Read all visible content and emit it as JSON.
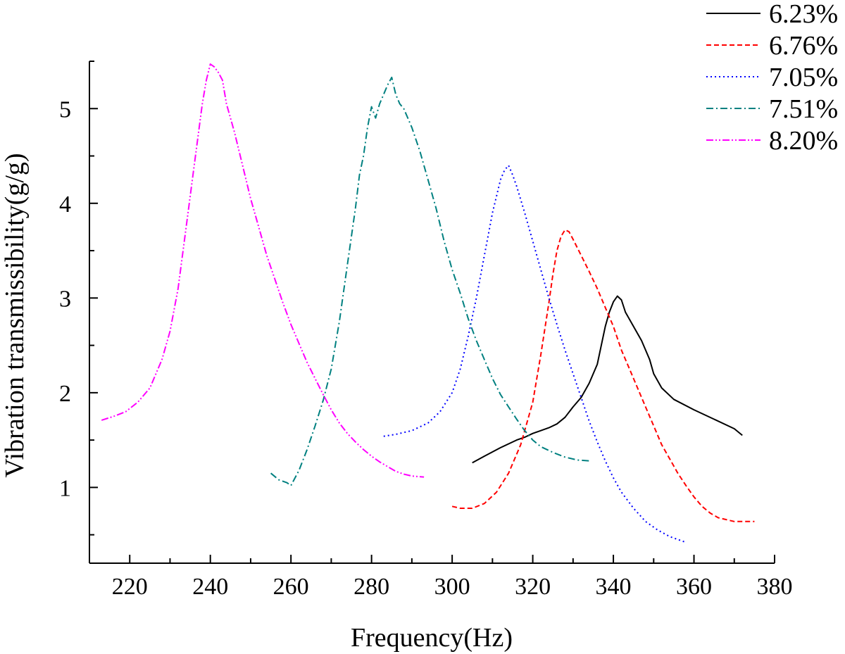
{
  "chart_data": {
    "type": "line",
    "title": "",
    "xlabel": "Frequency(Hz)",
    "ylabel": "Vibration transmissibility(g/g)",
    "xlim": [
      210,
      380
    ],
    "ylim": [
      0.2,
      5.5
    ],
    "xticks": [
      220,
      240,
      260,
      280,
      300,
      320,
      340,
      360,
      380
    ],
    "yticks": [
      1,
      2,
      3,
      4,
      5
    ],
    "xtick_labels": [
      "220",
      "240",
      "260",
      "280",
      "300",
      "320",
      "340",
      "360",
      "380"
    ],
    "ytick_labels": [
      "1",
      "2",
      "3",
      "4",
      "5"
    ],
    "grid": false,
    "legend_position": "top-right",
    "series": [
      {
        "name": "6.23%",
        "color": "#000000",
        "dash": "solid",
        "points": [
          [
            305,
            1.26
          ],
          [
            308,
            1.33
          ],
          [
            312,
            1.42
          ],
          [
            316,
            1.5
          ],
          [
            318,
            1.53
          ],
          [
            320,
            1.57
          ],
          [
            322,
            1.6
          ],
          [
            324,
            1.63
          ],
          [
            326,
            1.67
          ],
          [
            328,
            1.74
          ],
          [
            330,
            1.85
          ],
          [
            332,
            1.95
          ],
          [
            334,
            2.1
          ],
          [
            336,
            2.3
          ],
          [
            337,
            2.5
          ],
          [
            338,
            2.7
          ],
          [
            339,
            2.85
          ],
          [
            340,
            2.96
          ],
          [
            341,
            3.02
          ],
          [
            342,
            2.98
          ],
          [
            343,
            2.85
          ],
          [
            345,
            2.7
          ],
          [
            347,
            2.55
          ],
          [
            349,
            2.35
          ],
          [
            350,
            2.2
          ],
          [
            352,
            2.05
          ],
          [
            355,
            1.93
          ],
          [
            360,
            1.82
          ],
          [
            365,
            1.72
          ],
          [
            370,
            1.62
          ],
          [
            372,
            1.55
          ]
        ]
      },
      {
        "name": "6.76%",
        "color": "#ff0000",
        "dash": "dashed",
        "points": [
          [
            300,
            0.8
          ],
          [
            302,
            0.78
          ],
          [
            305,
            0.78
          ],
          [
            308,
            0.83
          ],
          [
            311,
            0.95
          ],
          [
            314,
            1.15
          ],
          [
            317,
            1.45
          ],
          [
            320,
            1.9
          ],
          [
            322,
            2.4
          ],
          [
            324,
            2.95
          ],
          [
            325,
            3.25
          ],
          [
            326,
            3.5
          ],
          [
            327,
            3.65
          ],
          [
            328,
            3.72
          ],
          [
            329,
            3.7
          ],
          [
            330,
            3.62
          ],
          [
            332,
            3.45
          ],
          [
            334,
            3.28
          ],
          [
            336,
            3.1
          ],
          [
            338,
            2.9
          ],
          [
            340,
            2.7
          ],
          [
            342,
            2.45
          ],
          [
            344,
            2.25
          ],
          [
            346,
            2.05
          ],
          [
            348,
            1.85
          ],
          [
            350,
            1.65
          ],
          [
            352,
            1.45
          ],
          [
            354,
            1.3
          ],
          [
            356,
            1.15
          ],
          [
            358,
            1.02
          ],
          [
            360,
            0.9
          ],
          [
            362,
            0.8
          ],
          [
            364,
            0.73
          ],
          [
            366,
            0.68
          ],
          [
            370,
            0.64
          ],
          [
            375,
            0.64
          ]
        ]
      },
      {
        "name": "7.05%",
        "color": "#0000ff",
        "dash": "dotted",
        "points": [
          [
            283,
            1.54
          ],
          [
            286,
            1.56
          ],
          [
            290,
            1.6
          ],
          [
            294,
            1.68
          ],
          [
            297,
            1.8
          ],
          [
            300,
            2.0
          ],
          [
            302,
            2.25
          ],
          [
            304,
            2.6
          ],
          [
            306,
            3.0
          ],
          [
            308,
            3.45
          ],
          [
            310,
            3.9
          ],
          [
            312,
            4.25
          ],
          [
            313,
            4.35
          ],
          [
            314,
            4.4
          ],
          [
            315,
            4.3
          ],
          [
            316,
            4.18
          ],
          [
            318,
            3.9
          ],
          [
            320,
            3.6
          ],
          [
            322,
            3.3
          ],
          [
            324,
            3.0
          ],
          [
            326,
            2.72
          ],
          [
            328,
            2.45
          ],
          [
            330,
            2.2
          ],
          [
            332,
            1.95
          ],
          [
            334,
            1.7
          ],
          [
            336,
            1.48
          ],
          [
            338,
            1.28
          ],
          [
            340,
            1.1
          ],
          [
            342,
            0.95
          ],
          [
            345,
            0.78
          ],
          [
            348,
            0.64
          ],
          [
            351,
            0.55
          ],
          [
            354,
            0.48
          ],
          [
            358,
            0.42
          ]
        ]
      },
      {
        "name": "7.51%",
        "color": "#008080",
        "dash": "dashdot",
        "points": [
          [
            255,
            1.15
          ],
          [
            257,
            1.08
          ],
          [
            259,
            1.05
          ],
          [
            260,
            1.02
          ],
          [
            262,
            1.18
          ],
          [
            264,
            1.4
          ],
          [
            266,
            1.65
          ],
          [
            268,
            1.92
          ],
          [
            270,
            2.25
          ],
          [
            272,
            2.75
          ],
          [
            274,
            3.35
          ],
          [
            276,
            3.95
          ],
          [
            277,
            4.3
          ],
          [
            278,
            4.5
          ],
          [
            279,
            4.8
          ],
          [
            280,
            5.02
          ],
          [
            281,
            4.9
          ],
          [
            282,
            5.05
          ],
          [
            283,
            5.15
          ],
          [
            284,
            5.25
          ],
          [
            285,
            5.33
          ],
          [
            286,
            5.15
          ],
          [
            287,
            5.05
          ],
          [
            288,
            5.0
          ],
          [
            290,
            4.8
          ],
          [
            292,
            4.55
          ],
          [
            294,
            4.25
          ],
          [
            296,
            3.95
          ],
          [
            298,
            3.6
          ],
          [
            300,
            3.3
          ],
          [
            302,
            3.05
          ],
          [
            304,
            2.78
          ],
          [
            306,
            2.55
          ],
          [
            308,
            2.35
          ],
          [
            310,
            2.15
          ],
          [
            312,
            1.98
          ],
          [
            314,
            1.85
          ],
          [
            316,
            1.72
          ],
          [
            318,
            1.6
          ],
          [
            320,
            1.5
          ],
          [
            322,
            1.43
          ],
          [
            325,
            1.37
          ],
          [
            328,
            1.32
          ],
          [
            331,
            1.29
          ],
          [
            334,
            1.28
          ]
        ]
      },
      {
        "name": "8.20%",
        "color": "#ff00ff",
        "dash": "dashdotdot",
        "points": [
          [
            213,
            1.71
          ],
          [
            216,
            1.75
          ],
          [
            219,
            1.8
          ],
          [
            222,
            1.9
          ],
          [
            225,
            2.05
          ],
          [
            228,
            2.35
          ],
          [
            230,
            2.65
          ],
          [
            232,
            3.1
          ],
          [
            234,
            3.75
          ],
          [
            236,
            4.4
          ],
          [
            238,
            5.05
          ],
          [
            239,
            5.3
          ],
          [
            240,
            5.47
          ],
          [
            241,
            5.44
          ],
          [
            242,
            5.38
          ],
          [
            243,
            5.3
          ],
          [
            244,
            5.05
          ],
          [
            246,
            4.75
          ],
          [
            248,
            4.4
          ],
          [
            250,
            4.05
          ],
          [
            252,
            3.75
          ],
          [
            254,
            3.45
          ],
          [
            256,
            3.2
          ],
          [
            258,
            2.95
          ],
          [
            260,
            2.72
          ],
          [
            262,
            2.52
          ],
          [
            264,
            2.32
          ],
          [
            266,
            2.15
          ],
          [
            268,
            1.98
          ],
          [
            270,
            1.82
          ],
          [
            272,
            1.68
          ],
          [
            274,
            1.57
          ],
          [
            276,
            1.48
          ],
          [
            278,
            1.4
          ],
          [
            280,
            1.33
          ],
          [
            282,
            1.27
          ],
          [
            284,
            1.22
          ],
          [
            286,
            1.17
          ],
          [
            288,
            1.14
          ],
          [
            290,
            1.12
          ],
          [
            293,
            1.11
          ]
        ]
      }
    ]
  }
}
